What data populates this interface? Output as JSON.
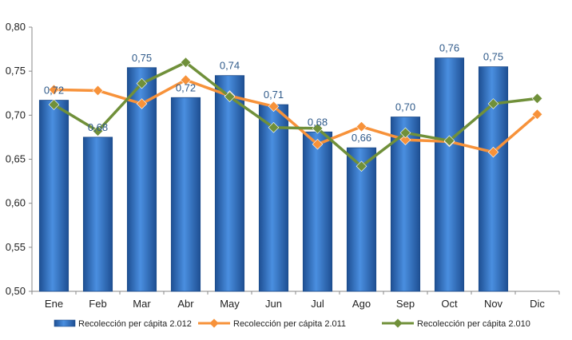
{
  "chart_data": {
    "type": "bar",
    "categories": [
      "Ene",
      "Feb",
      "Mar",
      "Abr",
      "May",
      "Jun",
      "Jul",
      "Ago",
      "Sep",
      "Oct",
      "Nov",
      "Dic"
    ],
    "ylim": [
      0.5,
      0.8
    ],
    "y_ticks": [
      "0,50",
      "0,55",
      "0,60",
      "0,65",
      "0,70",
      "0,75",
      "0,80"
    ],
    "grid": false,
    "legend_position": "bottom",
    "series": [
      {
        "name": "Recolección per cápita 2.012",
        "kind": "bar",
        "color": "#2E6FC0",
        "values": [
          0.717,
          0.675,
          0.754,
          0.72,
          0.745,
          0.712,
          0.681,
          0.663,
          0.698,
          0.765,
          0.755,
          null
        ],
        "labels": [
          "0,72",
          "0,68",
          "0,75",
          "0,72",
          "0,74",
          "0,71",
          "0,68",
          "0,66",
          "0,70",
          "0,76",
          "0,75",
          ""
        ]
      },
      {
        "name": "Recolección per cápita 2.011",
        "kind": "line",
        "color": "#F7923A",
        "values": [
          0.729,
          0.728,
          0.713,
          0.74,
          0.722,
          0.71,
          0.667,
          0.687,
          0.672,
          0.67,
          0.658,
          0.701
        ]
      },
      {
        "name": "Recolección per cápita 2.010",
        "kind": "line",
        "color": "#70903A",
        "values": [
          0.712,
          0.682,
          0.736,
          0.76,
          0.721,
          0.686,
          0.685,
          0.642,
          0.68,
          0.671,
          0.713,
          0.719
        ]
      }
    ]
  }
}
